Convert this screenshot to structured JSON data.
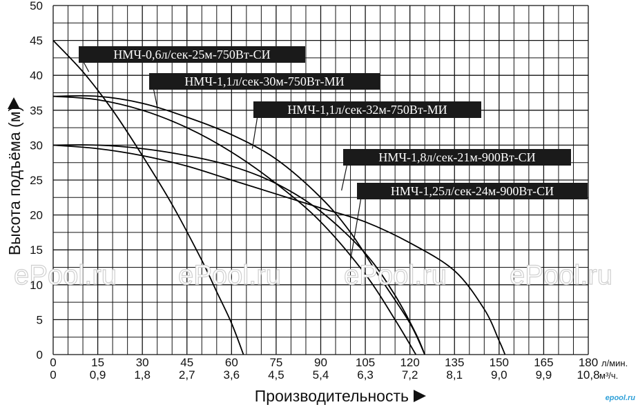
{
  "chart_data": {
    "type": "line",
    "ylabel": "Высота подъёма (м)",
    "xlabel": "Производительность",
    "y_ticks": [
      "0",
      "5",
      "10",
      "15",
      "20",
      "25",
      "30",
      "35",
      "40",
      "45",
      "50"
    ],
    "ylim": [
      0,
      50
    ],
    "xlim": [
      0,
      180
    ],
    "x_ticks_lmin": [
      "0",
      "15",
      "30",
      "45",
      "60",
      "75",
      "90",
      "105",
      "120",
      "135",
      "150",
      "165",
      "180"
    ],
    "x_unit_lmin": "л/мин.",
    "x_ticks_m3h": [
      "0",
      "0,9",
      "1,8",
      "2,7",
      "3,6",
      "4,5",
      "5,4",
      "6,3",
      "7,2",
      "8,1",
      "9,0",
      "9,9",
      "10,8"
    ],
    "x_unit_m3h": "м³/ч.",
    "grid": true,
    "series": [
      {
        "name": "НМЧ-0,6л/сек-25м-750Вт-СИ",
        "points": [
          [
            0,
            45
          ],
          [
            10,
            40.5
          ],
          [
            20,
            35
          ],
          [
            30,
            28.5
          ],
          [
            40,
            21.5
          ],
          [
            50,
            13.5
          ],
          [
            55,
            9
          ],
          [
            60,
            4.5
          ],
          [
            64,
            0
          ]
        ]
      },
      {
        "name": "НМЧ-1,1л/сек-30м-750Вт-МИ",
        "points": [
          [
            0,
            37
          ],
          [
            15,
            36.5
          ],
          [
            30,
            35
          ],
          [
            45,
            32.5
          ],
          [
            60,
            29
          ],
          [
            75,
            24.5
          ],
          [
            90,
            19
          ],
          [
            105,
            11.5
          ],
          [
            115,
            5
          ],
          [
            122,
            0
          ]
        ]
      },
      {
        "name": "НМЧ-1,1л/сек-32м-750Вт-МИ",
        "points": [
          [
            0,
            37
          ],
          [
            15,
            37
          ],
          [
            30,
            36
          ],
          [
            45,
            34
          ],
          [
            60,
            31.5
          ],
          [
            75,
            28
          ],
          [
            90,
            22.5
          ],
          [
            100,
            17.5
          ],
          [
            110,
            11
          ],
          [
            120,
            4.5
          ],
          [
            125,
            0
          ]
        ]
      },
      {
        "name": "НМЧ-1,8л/сек-21м-900Вт-СИ",
        "points": [
          [
            0,
            30
          ],
          [
            15,
            29.5
          ],
          [
            30,
            28.5
          ],
          [
            45,
            27
          ],
          [
            60,
            25
          ],
          [
            75,
            23
          ],
          [
            90,
            21
          ],
          [
            105,
            19
          ],
          [
            120,
            16
          ],
          [
            135,
            12
          ],
          [
            145,
            6.5
          ],
          [
            150,
            2
          ],
          [
            152,
            0
          ]
        ]
      },
      {
        "name": "НМЧ-1,25л/сек-24м-900Вт-СИ",
        "points": [
          [
            0,
            30
          ],
          [
            15,
            30
          ],
          [
            30,
            29.5
          ],
          [
            45,
            28.5
          ],
          [
            60,
            27
          ],
          [
            75,
            24.5
          ],
          [
            90,
            20.5
          ],
          [
            105,
            14.5
          ],
          [
            115,
            8.5
          ],
          [
            122,
            3
          ],
          [
            125,
            0
          ]
        ]
      }
    ],
    "labels": [
      {
        "text": "НМЧ-0,6л/сек-25м-750Вт-СИ",
        "target": [
          12,
          40.5
        ]
      },
      {
        "text": "НМЧ-1,1л/сек-30м-750Вт-МИ",
        "target": [
          35,
          35.5
        ]
      },
      {
        "text": "НМЧ-1,1л/сек-32м-750Вт-МИ",
        "target": [
          67,
          29.5
        ]
      },
      {
        "text": "НМЧ-1,8л/сек-21м-900Вт-СИ",
        "target": [
          97,
          23.5
        ]
      },
      {
        "text": "НМЧ-1,25л/сек-24м-900Вт-СИ",
        "target": [
          100,
          13.5
        ]
      }
    ]
  },
  "watermark": "ePool.ru",
  "site_logo": "epool.ru",
  "colors": {
    "line": "#000000",
    "grid": "#111111",
    "label_bg": "#1a1a1a",
    "label_text": "#ffffff",
    "watermark_stroke": "#cfcfcf",
    "logo": "#2fa0d8"
  }
}
